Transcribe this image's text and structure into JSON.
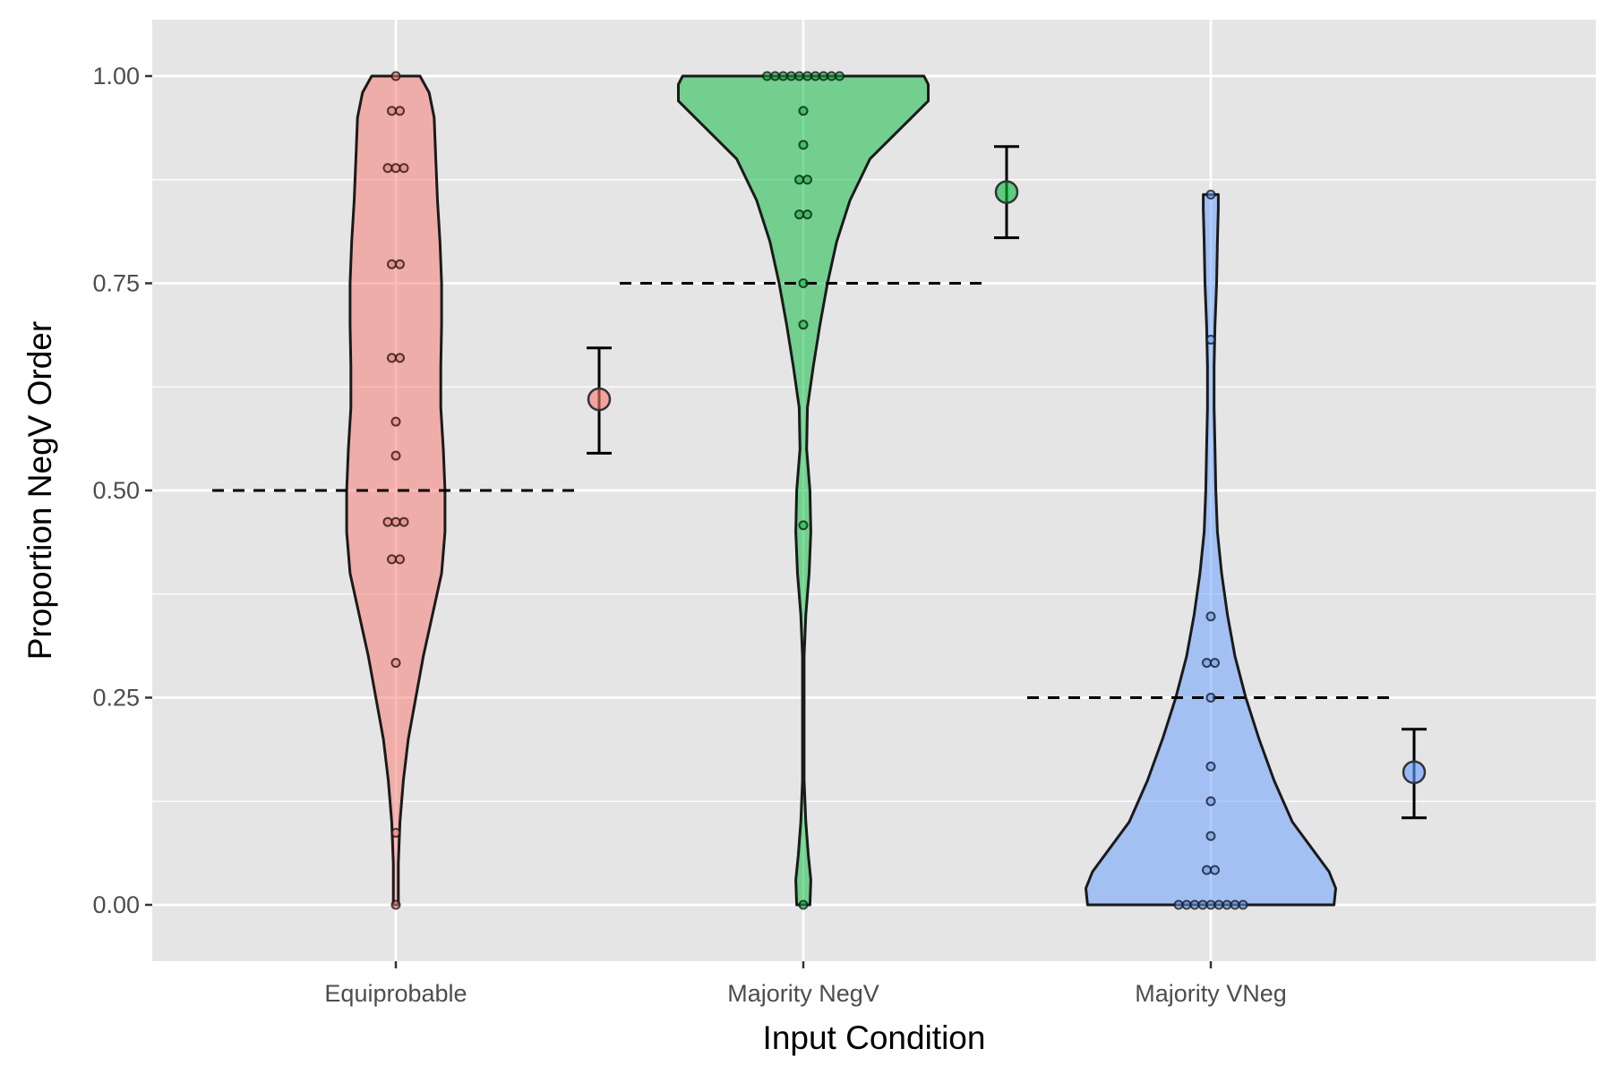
{
  "chart_data": {
    "type": "violin",
    "xlabel": "Input Condition",
    "ylabel": "Proportion NegV Order",
    "ylim": [
      -0.067,
      1.067
    ],
    "yticks": [
      0.0,
      0.25,
      0.5,
      0.75,
      1.0
    ],
    "ytick_labels": [
      "0.00",
      "0.25",
      "0.50",
      "0.75",
      "1.00"
    ],
    "grid": true,
    "legend": "none",
    "categories": [
      "Equiprobable",
      "Majority NegV",
      "Majority VNeg"
    ],
    "series": [
      {
        "category": "Equiprobable",
        "color": "#F8766D",
        "reference_line": 0.5,
        "mean": 0.61,
        "ci": [
          0.545,
          0.672
        ],
        "points": [
          1.0,
          0.958,
          0.958,
          0.889,
          0.889,
          0.889,
          0.773,
          0.773,
          0.66,
          0.66,
          0.583,
          0.542,
          0.462,
          0.462,
          0.462,
          0.417,
          0.417,
          0.292,
          0.087,
          0.0
        ],
        "density": [
          [
            0.0,
            0.03
          ],
          [
            0.05,
            0.03
          ],
          [
            0.1,
            0.05
          ],
          [
            0.15,
            0.09
          ],
          [
            0.2,
            0.15
          ],
          [
            0.25,
            0.24
          ],
          [
            0.3,
            0.33
          ],
          [
            0.35,
            0.44
          ],
          [
            0.4,
            0.55
          ],
          [
            0.45,
            0.59
          ],
          [
            0.5,
            0.59
          ],
          [
            0.55,
            0.57
          ],
          [
            0.6,
            0.54
          ],
          [
            0.65,
            0.54
          ],
          [
            0.7,
            0.55
          ],
          [
            0.75,
            0.55
          ],
          [
            0.8,
            0.53
          ],
          [
            0.85,
            0.5
          ],
          [
            0.9,
            0.48
          ],
          [
            0.95,
            0.46
          ],
          [
            0.98,
            0.4
          ],
          [
            1.0,
            0.29
          ]
        ]
      },
      {
        "category": "Majority NegV",
        "color": "#00BA38",
        "reference_line": 0.75,
        "mean": 0.86,
        "ci": [
          0.805,
          0.915
        ],
        "points": [
          1.0,
          1.0,
          1.0,
          1.0,
          1.0,
          1.0,
          1.0,
          1.0,
          1.0,
          1.0,
          0.958,
          0.917,
          0.875,
          0.875,
          0.833,
          0.833,
          0.75,
          0.7,
          0.458,
          0.0
        ],
        "density": [
          [
            0.0,
            0.08
          ],
          [
            0.03,
            0.09
          ],
          [
            0.06,
            0.06
          ],
          [
            0.1,
            0.03
          ],
          [
            0.15,
            0.01
          ],
          [
            0.2,
            0.01
          ],
          [
            0.3,
            0.01
          ],
          [
            0.35,
            0.03
          ],
          [
            0.4,
            0.07
          ],
          [
            0.45,
            0.09
          ],
          [
            0.5,
            0.08
          ],
          [
            0.55,
            0.04
          ],
          [
            0.6,
            0.05
          ],
          [
            0.65,
            0.12
          ],
          [
            0.7,
            0.2
          ],
          [
            0.75,
            0.29
          ],
          [
            0.8,
            0.4
          ],
          [
            0.85,
            0.56
          ],
          [
            0.9,
            0.8
          ],
          [
            0.94,
            1.2
          ],
          [
            0.97,
            1.5
          ],
          [
            0.99,
            1.5
          ],
          [
            1.0,
            1.45
          ]
        ]
      },
      {
        "category": "Majority VNeg",
        "color": "#619CFF",
        "reference_line": 0.25,
        "mean": 0.16,
        "ci": [
          0.105,
          0.212
        ],
        "points": [
          0.857,
          0.682,
          0.348,
          0.292,
          0.292,
          0.25,
          0.167,
          0.125,
          0.083,
          0.042,
          0.042,
          0.0,
          0.0,
          0.0,
          0.0,
          0.0,
          0.0,
          0.0,
          0.0,
          0.0
        ],
        "density": [
          [
            0.0,
            1.48
          ],
          [
            0.02,
            1.5
          ],
          [
            0.04,
            1.42
          ],
          [
            0.07,
            1.2
          ],
          [
            0.1,
            0.98
          ],
          [
            0.15,
            0.76
          ],
          [
            0.2,
            0.58
          ],
          [
            0.25,
            0.42
          ],
          [
            0.3,
            0.29
          ],
          [
            0.35,
            0.2
          ],
          [
            0.4,
            0.13
          ],
          [
            0.45,
            0.08
          ],
          [
            0.5,
            0.06
          ],
          [
            0.55,
            0.05
          ],
          [
            0.6,
            0.04
          ],
          [
            0.65,
            0.04
          ],
          [
            0.7,
            0.05
          ],
          [
            0.75,
            0.07
          ],
          [
            0.8,
            0.08
          ],
          [
            0.84,
            0.09
          ],
          [
            0.857,
            0.09
          ]
        ]
      }
    ]
  }
}
